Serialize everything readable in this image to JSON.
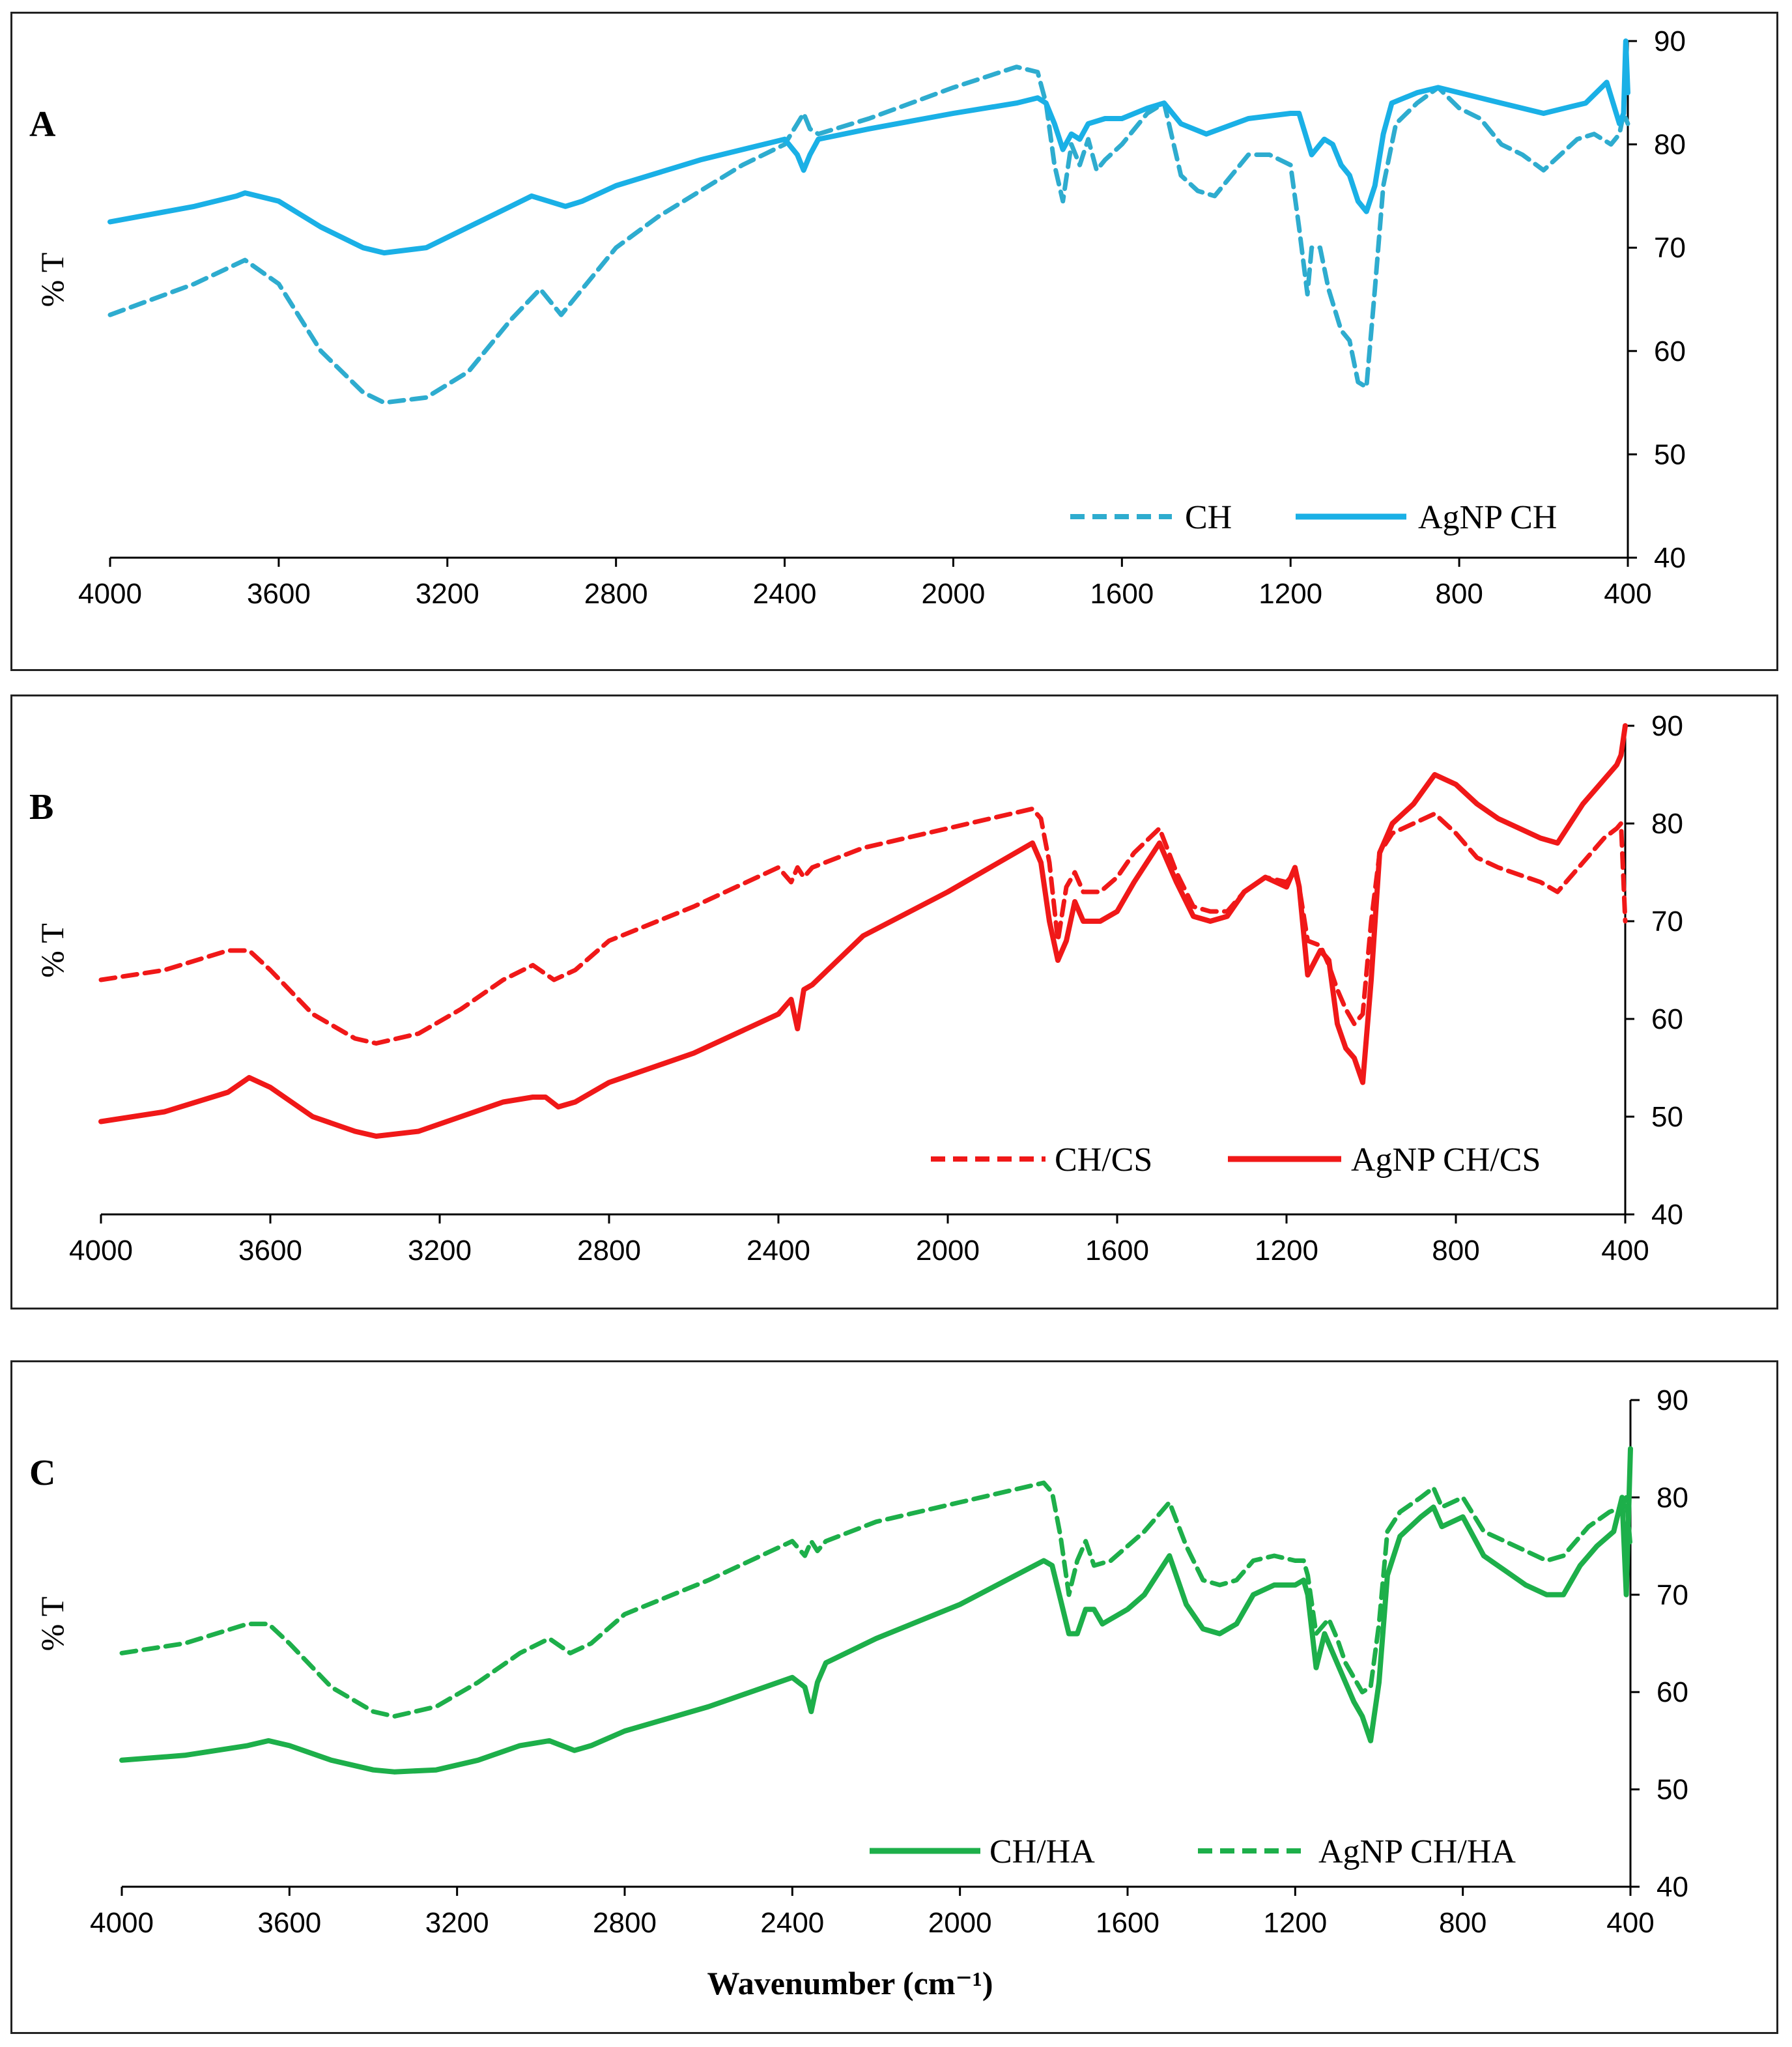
{
  "chart_data": [
    {
      "type": "line",
      "panel": "A",
      "ylabel": "% T",
      "xlabel": "",
      "xlim": [
        4000,
        400
      ],
      "ylim": [
        40,
        90
      ],
      "xticks": [
        4000,
        3600,
        3200,
        2800,
        2400,
        2000,
        1600,
        1200,
        800,
        400
      ],
      "yticks": [
        40,
        50,
        60,
        70,
        80,
        90
      ],
      "color": "#1ab0e6",
      "dash_color": "#2eaccf",
      "legend": [
        "CH",
        "AgNP CH"
      ],
      "series": [
        {
          "name": "CH",
          "style": "dashed",
          "x": [
            4000,
            3800,
            3680,
            3600,
            3500,
            3400,
            3350,
            3250,
            3150,
            3050,
            2980,
            2930,
            2880,
            2800,
            2700,
            2600,
            2500,
            2400,
            2370,
            2355,
            2340,
            2320,
            2200,
            2000,
            1850,
            1800,
            1780,
            1760,
            1740,
            1720,
            1700,
            1680,
            1660,
            1640,
            1600,
            1560,
            1540,
            1500,
            1460,
            1420,
            1380,
            1340,
            1300,
            1250,
            1200,
            1180,
            1160,
            1150,
            1130,
            1110,
            1080,
            1060,
            1040,
            1020,
            1000,
            980,
            950,
            900,
            850,
            800,
            750,
            700,
            650,
            600,
            560,
            520,
            480,
            440,
            420,
            410,
            400
          ],
          "y": [
            63.5,
            66.5,
            68.8,
            66.5,
            60,
            56,
            55,
            55.5,
            58,
            63,
            66,
            63.5,
            66,
            70,
            73,
            75.5,
            78,
            80,
            82,
            83,
            81.5,
            81,
            82.5,
            85.5,
            87.5,
            87,
            84,
            78,
            74.5,
            80,
            78,
            80.5,
            77.5,
            78.5,
            80,
            82,
            83,
            84,
            77,
            75.5,
            75,
            77,
            79,
            79,
            78,
            72,
            65.5,
            70,
            70,
            66,
            62,
            61,
            57,
            56.5,
            66,
            76,
            82,
            84,
            85.5,
            83.5,
            82.5,
            80,
            79,
            77.5,
            79,
            80.5,
            81,
            80,
            81,
            83,
            82
          ]
        },
        {
          "name": "AgNP CH",
          "style": "solid",
          "x": [
            4000,
            3800,
            3700,
            3680,
            3600,
            3500,
            3400,
            3350,
            3250,
            3150,
            3050,
            3000,
            2960,
            2920,
            2880,
            2800,
            2600,
            2400,
            2370,
            2355,
            2340,
            2320,
            2200,
            2000,
            1850,
            1800,
            1780,
            1760,
            1740,
            1720,
            1700,
            1680,
            1640,
            1600,
            1540,
            1500,
            1460,
            1400,
            1300,
            1200,
            1180,
            1150,
            1120,
            1100,
            1080,
            1060,
            1040,
            1020,
            1000,
            980,
            960,
            900,
            850,
            800,
            700,
            600,
            500,
            450,
            420,
            410,
            405,
            400
          ],
          "y": [
            72.5,
            74,
            75,
            75.3,
            74.5,
            72,
            70,
            69.5,
            70,
            72,
            74,
            75,
            74.5,
            74,
            74.5,
            76,
            78.5,
            80.5,
            79,
            77.5,
            79,
            80.5,
            81.5,
            83,
            84,
            84.5,
            84,
            82,
            79.5,
            81,
            80.5,
            82,
            82.5,
            82.5,
            83.5,
            84,
            82,
            81,
            82.5,
            83,
            83,
            79,
            80.5,
            80,
            78,
            77,
            74.5,
            73.5,
            76,
            81,
            84,
            85,
            85.5,
            85,
            84,
            83,
            84,
            86,
            82,
            83,
            90,
            85
          ]
        }
      ]
    },
    {
      "type": "line",
      "panel": "B",
      "ylabel": "% T",
      "xlabel": "",
      "xlim": [
        4000,
        400
      ],
      "ylim": [
        40,
        90
      ],
      "xticks": [
        4000,
        3600,
        3200,
        2800,
        2400,
        2000,
        1600,
        1200,
        800,
        400
      ],
      "yticks": [
        40,
        50,
        60,
        70,
        80,
        90
      ],
      "color": "#f01818",
      "dash_color": "#f01818",
      "legend": [
        "CH/CS",
        "AgNP CH/CS"
      ],
      "series": [
        {
          "name": "CH/CS",
          "style": "dashed",
          "x": [
            4000,
            3850,
            3700,
            3650,
            3600,
            3500,
            3400,
            3350,
            3250,
            3150,
            3050,
            2980,
            2930,
            2880,
            2800,
            2600,
            2400,
            2370,
            2355,
            2340,
            2320,
            2200,
            2000,
            1800,
            1780,
            1760,
            1740,
            1720,
            1700,
            1680,
            1640,
            1600,
            1560,
            1500,
            1460,
            1420,
            1380,
            1340,
            1300,
            1250,
            1200,
            1180,
            1170,
            1150,
            1120,
            1100,
            1080,
            1060,
            1040,
            1020,
            1000,
            980,
            950,
            900,
            850,
            800,
            750,
            700,
            600,
            560,
            500,
            450,
            420,
            410,
            400
          ],
          "y": [
            64,
            65,
            67,
            67,
            65,
            60.5,
            58,
            57.5,
            58.5,
            61,
            64,
            65.5,
            64,
            65,
            68,
            71.5,
            75.5,
            74,
            75.5,
            74.5,
            75.5,
            77.5,
            79.5,
            81.5,
            80.5,
            76,
            68,
            73.5,
            75,
            73,
            73,
            74.5,
            77,
            79.5,
            75,
            71.5,
            71,
            71,
            73,
            74.5,
            74,
            75,
            73.5,
            68,
            67.5,
            65.5,
            63,
            61,
            59.5,
            60.5,
            70,
            77,
            79,
            80,
            81,
            79,
            76.5,
            75.5,
            74,
            73,
            76,
            78.5,
            79.5,
            80,
            70
          ]
        },
        {
          "name": "AgNP CH/CS",
          "style": "solid",
          "x": [
            4000,
            3850,
            3700,
            3650,
            3600,
            3500,
            3400,
            3350,
            3250,
            3150,
            3050,
            2980,
            2950,
            2920,
            2880,
            2800,
            2600,
            2400,
            2370,
            2355,
            2340,
            2320,
            2200,
            2000,
            1800,
            1780,
            1760,
            1740,
            1720,
            1700,
            1680,
            1640,
            1600,
            1560,
            1500,
            1460,
            1420,
            1380,
            1340,
            1300,
            1250,
            1200,
            1180,
            1170,
            1150,
            1120,
            1100,
            1080,
            1060,
            1040,
            1020,
            1000,
            980,
            950,
            900,
            850,
            800,
            750,
            700,
            600,
            560,
            500,
            450,
            420,
            410,
            400
          ],
          "y": [
            49.5,
            50.5,
            52.5,
            54,
            53,
            50,
            48.5,
            48,
            48.5,
            50,
            51.5,
            52,
            52,
            51,
            51.5,
            53.5,
            56.5,
            60.5,
            62,
            59,
            63,
            63.5,
            68.5,
            73,
            78,
            76,
            70,
            66,
            68,
            72,
            70,
            70,
            71,
            74,
            78,
            74,
            70.5,
            70,
            70.5,
            73,
            74.5,
            73.5,
            75.5,
            73.5,
            64.5,
            67,
            66,
            59.5,
            57,
            56,
            53.5,
            64,
            77,
            80,
            82,
            85,
            84,
            82,
            80.5,
            78.5,
            78,
            82,
            84.5,
            86,
            87,
            90
          ]
        }
      ]
    },
    {
      "type": "line",
      "panel": "C",
      "ylabel": "% T",
      "xlabel": "Wavenumber (cm-1)",
      "xlim": [
        4000,
        400
      ],
      "ylim": [
        40,
        90
      ],
      "xticks": [
        4000,
        3600,
        3200,
        2800,
        2400,
        2000,
        1600,
        1200,
        800,
        400
      ],
      "yticks": [
        40,
        50,
        60,
        70,
        80,
        90
      ],
      "color": "#1daf4a",
      "dash_color": "#1daf4a",
      "legend": [
        "CH/HA",
        "AgNP CH/HA"
      ],
      "series": [
        {
          "name": "CH/HA",
          "style": "solid",
          "x": [
            4000,
            3850,
            3700,
            3650,
            3600,
            3500,
            3400,
            3350,
            3250,
            3150,
            3050,
            2980,
            2950,
            2920,
            2880,
            2800,
            2600,
            2400,
            2370,
            2355,
            2340,
            2320,
            2200,
            2000,
            1800,
            1780,
            1760,
            1740,
            1720,
            1700,
            1680,
            1660,
            1640,
            1600,
            1560,
            1500,
            1460,
            1420,
            1380,
            1340,
            1300,
            1250,
            1200,
            1180,
            1170,
            1150,
            1130,
            1110,
            1080,
            1060,
            1040,
            1020,
            1000,
            980,
            950,
            900,
            870,
            850,
            800,
            750,
            700,
            650,
            600,
            560,
            520,
            480,
            440,
            420,
            410,
            400
          ],
          "y": [
            53,
            53.5,
            54.5,
            55,
            54.5,
            53,
            52,
            51.8,
            52,
            53,
            54.5,
            55,
            54.5,
            54,
            54.5,
            56,
            58.5,
            61.5,
            60.5,
            58,
            61,
            63,
            65.5,
            69,
            73.5,
            73,
            69.5,
            66,
            66,
            68.5,
            68.5,
            67,
            67.5,
            68.5,
            70,
            74,
            69,
            66.5,
            66,
            67,
            70,
            71,
            71,
            71.5,
            70,
            62.5,
            66,
            64,
            61,
            59,
            57.5,
            55,
            61,
            72,
            76,
            78,
            79,
            77,
            78,
            74,
            72.5,
            71,
            70,
            70,
            73,
            75,
            76.5,
            80,
            70,
            85
          ]
        },
        {
          "name": "AgNP CH/HA",
          "style": "dashed",
          "x": [
            4000,
            3850,
            3700,
            3650,
            3600,
            3500,
            3400,
            3350,
            3250,
            3150,
            3050,
            2980,
            2930,
            2880,
            2800,
            2600,
            2400,
            2370,
            2355,
            2340,
            2320,
            2200,
            2000,
            1800,
            1780,
            1760,
            1740,
            1720,
            1700,
            1680,
            1640,
            1600,
            1560,
            1500,
            1460,
            1420,
            1380,
            1340,
            1300,
            1250,
            1200,
            1180,
            1170,
            1150,
            1120,
            1100,
            1080,
            1060,
            1040,
            1020,
            1000,
            980,
            950,
            900,
            870,
            850,
            800,
            750,
            700,
            600,
            560,
            500,
            450,
            420,
            410,
            400
          ],
          "y": [
            64,
            65,
            67,
            67,
            65,
            60.5,
            58,
            57.5,
            58.5,
            61,
            64,
            65.5,
            64,
            65,
            68,
            71.5,
            75.5,
            74,
            75.5,
            74.5,
            75.5,
            77.5,
            79.5,
            81.5,
            80.5,
            76,
            70,
            73.5,
            75.5,
            73,
            73.5,
            75,
            76.5,
            79.5,
            75,
            71.5,
            71,
            71.5,
            73.5,
            74,
            73.5,
            73.5,
            72,
            66,
            67.5,
            65.5,
            63,
            61.5,
            60,
            60.5,
            67,
            76.5,
            78.5,
            80,
            81,
            79,
            80,
            76.5,
            75.5,
            73.5,
            74,
            77,
            78.5,
            79,
            80,
            75
          ]
        }
      ]
    }
  ]
}
